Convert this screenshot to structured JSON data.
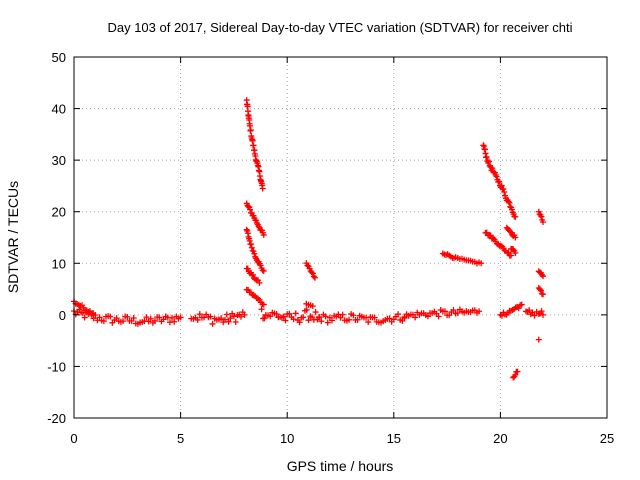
{
  "chart_data": {
    "type": "scatter",
    "title": "Day 103 of 2017, Sidereal Day-to-day VTEC variation (SDTVAR) for receiver chti",
    "xlabel": "GPS time / hours",
    "ylabel": "SDTVAR / TECUs",
    "xlim": [
      0,
      25
    ],
    "ylim": [
      -20,
      50
    ],
    "xticks": [
      0,
      5,
      10,
      15,
      20,
      25
    ],
    "yticks": [
      -20,
      -10,
      0,
      10,
      20,
      30,
      40,
      50
    ],
    "grid": true,
    "marker": "+",
    "color": "#ff0000",
    "segments": [
      {
        "x": [
          0.0,
          0.5,
          1.0,
          1.5,
          2.0,
          2.5,
          3.0,
          3.5,
          4.0,
          4.5,
          5.0
        ],
        "y": [
          0.5,
          0.0,
          -0.5,
          -0.8,
          -1.0,
          -1.0,
          -1.2,
          -1.2,
          -1.0,
          -0.8,
          -0.5
        ],
        "spread": 1.6
      },
      {
        "x": [
          0.0,
          0.3,
          0.6,
          0.9
        ],
        "y": [
          2.5,
          1.8,
          1.0,
          0.3
        ],
        "spread": 0.6
      },
      {
        "x": [
          5.5,
          6.0,
          6.5,
          7.0,
          7.5,
          8.0
        ],
        "y": [
          -0.3,
          -0.5,
          -0.8,
          -1.0,
          -0.5,
          0.0
        ],
        "spread": 2.0
      },
      {
        "x": [
          8.1,
          8.25,
          8.4,
          8.55,
          8.7,
          8.85
        ],
        "y": [
          41.5,
          36.5,
          33.0,
          30.0,
          27.5,
          24.5
        ],
        "spread": 0.8
      },
      {
        "x": [
          8.1,
          8.3,
          8.5,
          8.7,
          8.9
        ],
        "y": [
          21.5,
          20.0,
          18.5,
          17.0,
          15.5
        ],
        "spread": 0.6
      },
      {
        "x": [
          8.1,
          8.3,
          8.5,
          8.7,
          8.9
        ],
        "y": [
          16.5,
          13.5,
          11.5,
          9.8,
          8.5
        ],
        "spread": 0.6
      },
      {
        "x": [
          8.1,
          8.3,
          8.5,
          8.7
        ],
        "y": [
          9.0,
          8.0,
          7.0,
          6.2
        ],
        "spread": 0.5
      },
      {
        "x": [
          8.1,
          8.3,
          8.5,
          8.7,
          8.9
        ],
        "y": [
          5.0,
          4.2,
          3.5,
          2.8,
          2.0
        ],
        "spread": 0.5
      },
      {
        "x": [
          8.8,
          9.0,
          9.5,
          10.0,
          10.5,
          11.0,
          11.5
        ],
        "y": [
          0.5,
          0.0,
          0.0,
          -0.8,
          -0.5,
          0.0,
          -0.5
        ],
        "spread": 2.2
      },
      {
        "x": [
          10.9,
          11.1,
          11.3
        ],
        "y": [
          9.8,
          8.5,
          7.2
        ],
        "spread": 0.5
      },
      {
        "x": [
          10.9,
          11.2
        ],
        "y": [
          2.0,
          1.7
        ],
        "spread": 0.5
      },
      {
        "x": [
          11.5,
          12.0,
          12.5,
          13.0,
          13.5,
          14.0,
          14.5,
          15.0,
          15.5
        ],
        "y": [
          -0.5,
          -0.8,
          -0.6,
          -0.5,
          -0.8,
          -1.0,
          -0.8,
          -0.6,
          -0.4
        ],
        "spread": 1.6
      },
      {
        "x": [
          15.5,
          16.0,
          16.5,
          17.0,
          17.5,
          18.0,
          18.5,
          19.0
        ],
        "y": [
          -0.3,
          0.0,
          0.2,
          0.3,
          0.3,
          0.4,
          0.5,
          0.7
        ],
        "spread": 1.3
      },
      {
        "x": [
          17.3,
          17.6,
          17.9,
          18.2,
          18.5,
          18.8,
          19.1
        ],
        "y": [
          12.0,
          11.5,
          11.0,
          10.7,
          10.4,
          10.2,
          10.0
        ],
        "spread": 0.4
      },
      {
        "x": [
          19.2,
          19.35,
          19.5,
          19.7,
          19.9,
          20.1,
          20.3,
          20.5,
          20.7
        ],
        "y": [
          33.0,
          30.5,
          29.0,
          27.5,
          26.0,
          24.5,
          22.5,
          21.0,
          19.0
        ],
        "spread": 0.8
      },
      {
        "x": [
          19.3,
          19.6,
          19.9,
          20.2,
          20.5
        ],
        "y": [
          16.0,
          15.0,
          13.8,
          12.6,
          11.5
        ],
        "spread": 0.5
      },
      {
        "x": [
          20.3,
          20.5,
          20.7
        ],
        "y": [
          17.0,
          16.0,
          15.0
        ],
        "spread": 0.5
      },
      {
        "x": [
          20.5,
          20.7
        ],
        "y": [
          13.0,
          12.0
        ],
        "spread": 0.5
      },
      {
        "x": [
          20.6,
          20.8
        ],
        "y": [
          -12.0,
          -11.0
        ],
        "spread": 0.5
      },
      {
        "x": [
          20.0,
          20.5,
          21.0
        ],
        "y": [
          -0.2,
          0.8,
          2.0
        ],
        "spread": 0.8
      },
      {
        "x": [
          21.2,
          21.5,
          21.8,
          22.0
        ],
        "y": [
          0.0,
          0.5,
          0.5,
          0.0
        ],
        "spread": 1.8
      },
      {
        "x": [
          21.8,
          22.0
        ],
        "y": [
          20.0,
          18.0
        ],
        "spread": 0.5
      },
      {
        "x": [
          21.8,
          22.0
        ],
        "y": [
          8.5,
          7.5
        ],
        "spread": 0.5
      },
      {
        "x": [
          21.8,
          22.0
        ],
        "y": [
          5.0,
          4.0
        ],
        "spread": 0.5
      },
      {
        "x": [
          21.8
        ],
        "y": [
          -4.8
        ],
        "spread": 0.2
      }
    ]
  }
}
